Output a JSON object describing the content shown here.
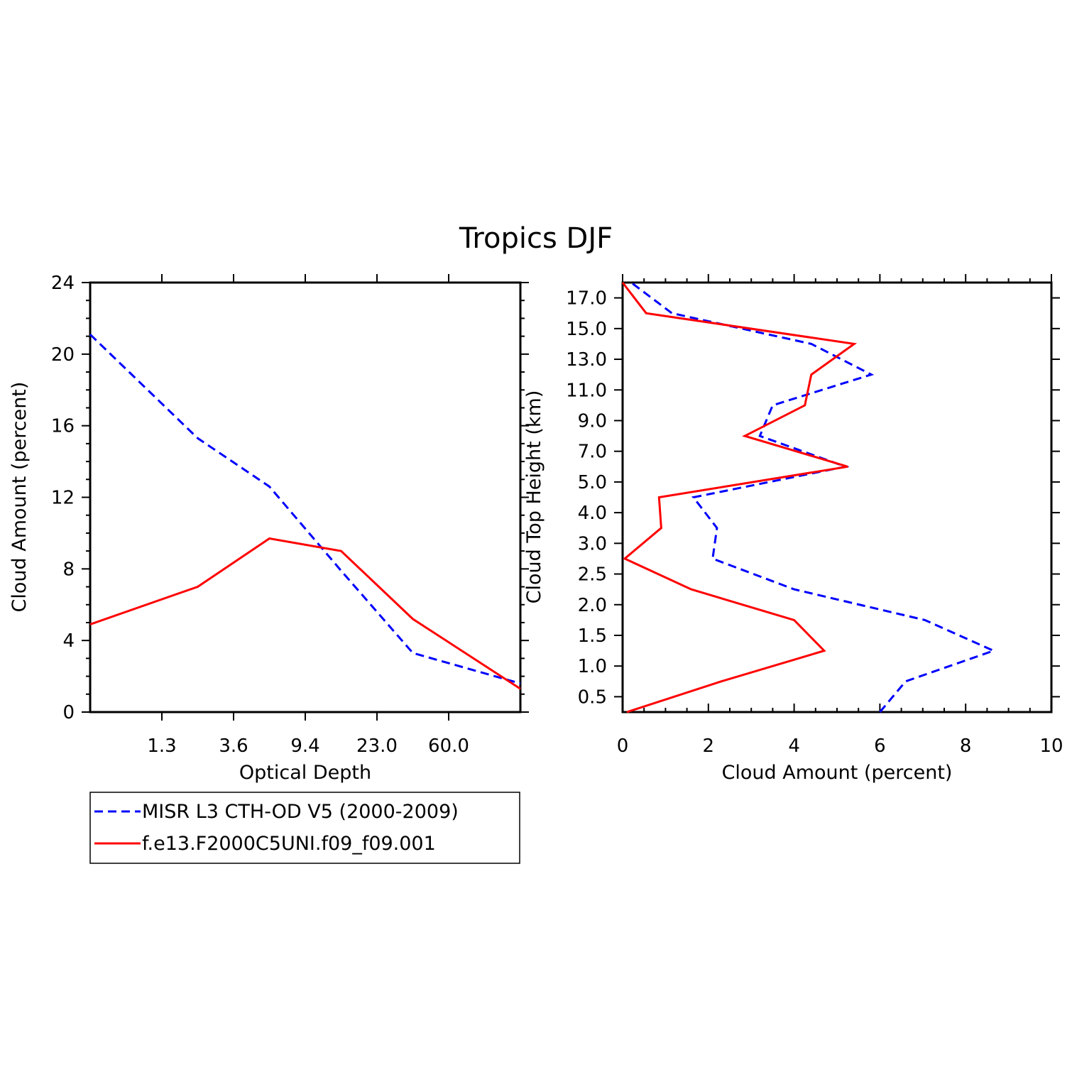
{
  "title": "Tropics DJF",
  "colors": {
    "obs": "#0000ff",
    "model": "#ff0000",
    "axis": "#000000"
  },
  "chart_data": [
    {
      "type": "line",
      "xlabel": "Optical Depth",
      "ylabel": "Cloud Amount (percent)",
      "ylim": [
        0,
        24
      ],
      "y_ticks": [
        "0",
        "4",
        "8",
        "12",
        "16",
        "20",
        "24"
      ],
      "x_ticks": [
        "1.3",
        "3.6",
        "9.4",
        "23.0",
        "60.0"
      ],
      "x": [
        0.5,
        1.5,
        2.5,
        3.5,
        4.5,
        5.5
      ],
      "series": [
        {
          "name": "MISR L3 CTH-OD V5 (2000-2009)",
          "style": "dashed",
          "color": "#0000ff",
          "values": [
            21.1,
            15.3,
            12.6,
            7.9,
            3.3,
            1.6
          ]
        },
        {
          "name": "f.e13.F2000C5UNI.f09_f09.001",
          "style": "solid",
          "color": "#ff0000",
          "values": [
            4.9,
            7.0,
            9.7,
            9.0,
            5.2,
            1.3
          ]
        }
      ]
    },
    {
      "type": "line",
      "xlabel": "Cloud Amount (percent)",
      "ylabel": "Cloud Top Height (km)",
      "xlim": [
        0,
        10
      ],
      "x_ticks": [
        "0",
        "2",
        "4",
        "6",
        "8",
        "10"
      ],
      "y_ticks": [
        "0.5",
        "1.0",
        "1.5",
        "2.0",
        "2.5",
        "3.0",
        "4.0",
        "5.0",
        "7.0",
        "9.0",
        "11.0",
        "13.0",
        "15.0",
        "17.0"
      ],
      "heights": [
        "0.25",
        "0.75",
        "1.25",
        "1.75",
        "2.25",
        "2.75",
        "3.5",
        "4.5",
        "6.0",
        "8.0",
        "10.0",
        "12.0",
        "14.0",
        "16.0",
        "18.0"
      ],
      "series": [
        {
          "name": "MISR L3 CTH-OD V5 (2000-2009)",
          "style": "dashed",
          "color": "#0000ff",
          "values": [
            6.0,
            6.6,
            8.65,
            7.05,
            4.0,
            2.1,
            2.2,
            1.65,
            5.2,
            3.2,
            3.5,
            5.8,
            4.4,
            1.15,
            0.2
          ]
        },
        {
          "name": "f.e13.F2000C5UNI.f09_f09.001",
          "style": "solid",
          "color": "#ff0000",
          "values": [
            0.1,
            2.3,
            4.7,
            4.0,
            1.6,
            0.05,
            0.9,
            0.85,
            5.25,
            2.85,
            4.25,
            4.4,
            5.4,
            0.55,
            0.0
          ]
        }
      ]
    }
  ],
  "legend": {
    "entries": [
      {
        "label": "MISR L3 CTH-OD V5 (2000-2009)",
        "color": "#0000ff",
        "style": "dashed"
      },
      {
        "label": "f.e13.F2000C5UNI.f09_f09.001",
        "color": "#ff0000",
        "style": "solid"
      }
    ]
  }
}
